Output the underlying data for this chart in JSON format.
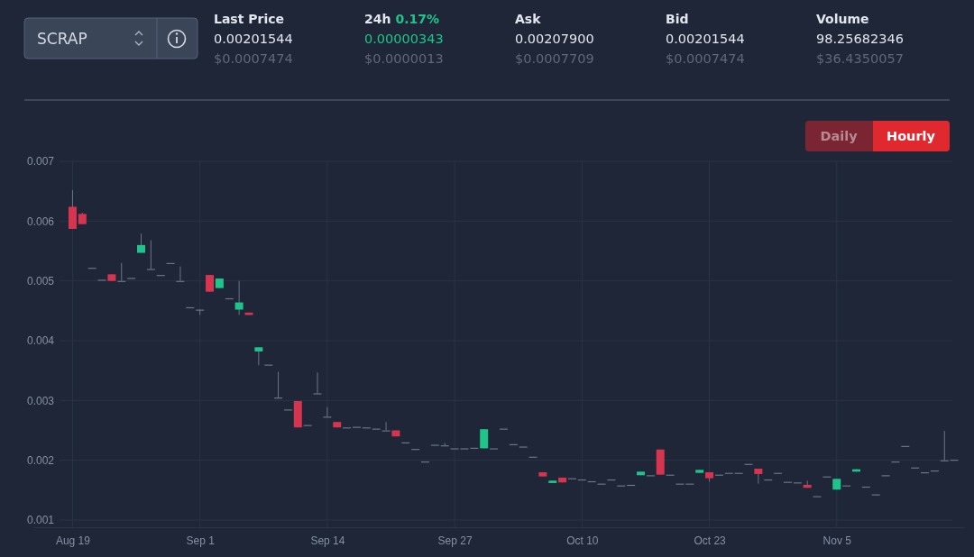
{
  "chart_data": {
    "type": "candlestick",
    "annotations": [
      "SCRAP",
      "Last Price",
      "0.00201544",
      "$0.0007474",
      "24h",
      "0.17%",
      "0.00000343",
      "$0.0000013",
      "Ask",
      "0.00207900",
      "$0.0007709",
      "Bid",
      "0.00201544",
      "$0.0007474",
      "Volume",
      "98.25682346",
      "$36.4350057",
      "Daily",
      "Hourly"
    ],
    "x": [
      "--08-19",
      "--08-20",
      "--08-21",
      "--08-22",
      "--08-23",
      "--08-24",
      "--08-25",
      "--08-26",
      "--08-27",
      "--08-28",
      "--08-29",
      "--08-30",
      "--08-31",
      "--09-01",
      "--09-02",
      "--09-03",
      "--09-04",
      "--09-05",
      "--09-06",
      "--09-07",
      "--09-08",
      "--09-09",
      "--09-10",
      "--09-11",
      "--09-12",
      "--09-13",
      "--09-14",
      "--09-15",
      "--09-16",
      "--09-17",
      "--09-18",
      "--09-19",
      "--09-20",
      "--09-21",
      "--09-22",
      "--09-23",
      "--09-24",
      "--09-25",
      "--09-26",
      "--09-27",
      "--09-28",
      "--09-29",
      "--09-30",
      "--10-01",
      "--10-02",
      "--10-03",
      "--10-04",
      "--10-05",
      "--10-06",
      "--10-07",
      "--10-08",
      "--10-09",
      "--10-10",
      "--10-11",
      "--10-12",
      "--10-13",
      "--10-14",
      "--10-15",
      "--10-16",
      "--10-17",
      "--10-18",
      "--10-19",
      "--10-20",
      "--10-21",
      "--10-22",
      "--10-23",
      "--10-24",
      "--10-25",
      "--10-26",
      "--10-27",
      "--10-28",
      "--10-29",
      "--10-30",
      "--10-31",
      "--11-01",
      "--11-02",
      "--11-03",
      "--11-04",
      "--11-05",
      "--11-06",
      "--11-07",
      "--11-08",
      "--11-09",
      "--11-10",
      "--11-11",
      "--11-12",
      "--11-13",
      "--11-14",
      "--11-15",
      "--11-16",
      "--11-17"
    ],
    "ohlc": [
      [
        0.00624,
        0.00652,
        0.00587,
        0.00587
      ],
      [
        0.00612,
        0.00614,
        0.00595,
        0.00595
      ],
      [
        0.00522,
        0.00522,
        0.00522,
        0.00522
      ],
      [
        0.00502,
        0.00502,
        0.00502,
        0.00502
      ],
      [
        0.00511,
        0.00511,
        0.005,
        0.005
      ],
      [
        0.005,
        0.0053,
        0.005,
        0.005
      ],
      [
        0.00505,
        0.00505,
        0.00505,
        0.00505
      ],
      [
        0.00547,
        0.00579,
        0.00547,
        0.0056
      ],
      [
        0.0052,
        0.00568,
        0.0052,
        0.0052
      ],
      [
        0.0051,
        0.0051,
        0.0051,
        0.0051
      ],
      [
        0.0053,
        0.0053,
        0.0053,
        0.0053
      ],
      [
        0.005,
        0.00524,
        0.005,
        0.005
      ],
      [
        0.00456,
        0.00456,
        0.00456,
        0.00456
      ],
      [
        0.00452,
        0.00452,
        0.00443,
        0.00452
      ],
      [
        0.0051,
        0.0051,
        0.00482,
        0.00482
      ],
      [
        0.00488,
        0.00504,
        0.00488,
        0.00504
      ],
      [
        0.00471,
        0.00471,
        0.00471,
        0.00471
      ],
      [
        0.00452,
        0.005,
        0.00443,
        0.00464
      ],
      [
        0.00447,
        0.00447,
        0.00443,
        0.00443
      ],
      [
        0.00382,
        0.00389,
        0.00359,
        0.00389
      ],
      [
        0.0036,
        0.0036,
        0.0036,
        0.0036
      ],
      [
        0.00305,
        0.00348,
        0.00305,
        0.00305
      ],
      [
        0.00285,
        0.00285,
        0.00285,
        0.00285
      ],
      [
        0.00299,
        0.00299,
        0.00255,
        0.00255
      ],
      [
        0.00259,
        0.00259,
        0.00259,
        0.00259
      ],
      [
        0.00312,
        0.00347,
        0.00312,
        0.00312
      ],
      [
        0.00273,
        0.00289,
        0.00273,
        0.00273
      ],
      [
        0.00264,
        0.00264,
        0.00255,
        0.00255
      ],
      [
        0.00255,
        0.00255,
        0.00255,
        0.00255
      ],
      [
        0.00256,
        0.00256,
        0.00256,
        0.00256
      ],
      [
        0.00255,
        0.00255,
        0.00255,
        0.00255
      ],
      [
        0.00253,
        0.00253,
        0.00253,
        0.00253
      ],
      [
        0.0025,
        0.00264,
        0.0025,
        0.0025
      ],
      [
        0.0025,
        0.0025,
        0.0024,
        0.0024
      ],
      [
        0.0023,
        0.0023,
        0.0023,
        0.0023
      ],
      [
        0.00219,
        0.00219,
        0.00219,
        0.00219
      ],
      [
        0.00198,
        0.00198,
        0.00198,
        0.00198
      ],
      [
        0.00226,
        0.00226,
        0.00226,
        0.00226
      ],
      [
        0.00225,
        0.00229,
        0.00225,
        0.00225
      ],
      [
        0.0022,
        0.0022,
        0.0022,
        0.0022
      ],
      [
        0.0022,
        0.0022,
        0.0022,
        0.0022
      ],
      [
        0.00221,
        0.00221,
        0.00221,
        0.00221
      ],
      [
        0.0022,
        0.00252,
        0.0022,
        0.00252
      ],
      [
        0.0022,
        0.0022,
        0.0022,
        0.0022
      ],
      [
        0.00253,
        0.00253,
        0.00253,
        0.00253
      ],
      [
        0.00227,
        0.00227,
        0.00227,
        0.00227
      ],
      [
        0.00223,
        0.00223,
        0.00223,
        0.00223
      ],
      [
        0.00206,
        0.00206,
        0.00206,
        0.00206
      ],
      [
        0.0018,
        0.0018,
        0.00173,
        0.00173
      ],
      [
        0.00162,
        0.00166,
        0.00162,
        0.00166
      ],
      [
        0.00171,
        0.00171,
        0.00163,
        0.00163
      ],
      [
        0.0017,
        0.0017,
        0.0017,
        0.0017
      ],
      [
        0.00168,
        0.00168,
        0.00168,
        0.00168
      ],
      [
        0.00165,
        0.00165,
        0.00165,
        0.00165
      ],
      [
        0.00161,
        0.00161,
        0.00161,
        0.00161
      ],
      [
        0.00168,
        0.00168,
        0.00168,
        0.00168
      ],
      [
        0.00158,
        0.00158,
        0.00158,
        0.00158
      ],
      [
        0.00159,
        0.00159,
        0.00159,
        0.00159
      ],
      [
        0.00175,
        0.00181,
        0.00175,
        0.00181
      ],
      [
        0.00175,
        0.00175,
        0.00175,
        0.00175
      ],
      [
        0.00218,
        0.00218,
        0.00176,
        0.00176
      ],
      [
        0.00176,
        0.00176,
        0.00176,
        0.00176
      ],
      [
        0.00161,
        0.00161,
        0.00161,
        0.00161
      ],
      [
        0.00161,
        0.00161,
        0.00161,
        0.00161
      ],
      [
        0.00179,
        0.00184,
        0.00179,
        0.00184
      ],
      [
        0.0018,
        0.0018,
        0.00164,
        0.0017
      ],
      [
        0.00176,
        0.00176,
        0.00176,
        0.00176
      ],
      [
        0.00179,
        0.00179,
        0.00179,
        0.00179
      ],
      [
        0.00179,
        0.00179,
        0.00179,
        0.00179
      ],
      [
        0.00194,
        0.00194,
        0.00194,
        0.00194
      ],
      [
        0.00186,
        0.00186,
        0.00161,
        0.00177
      ],
      [
        0.00168,
        0.00168,
        0.00168,
        0.00168
      ],
      [
        0.00179,
        0.00179,
        0.00179,
        0.00179
      ],
      [
        0.00164,
        0.00164,
        0.00164,
        0.00164
      ],
      [
        0.00163,
        0.00163,
        0.00163,
        0.00163
      ],
      [
        0.00159,
        0.00166,
        0.00154,
        0.00154
      ],
      [
        0.0014,
        0.0014,
        0.0014,
        0.0014
      ],
      [
        0.00173,
        0.00173,
        0.00173,
        0.00173
      ],
      [
        0.00151,
        0.00169,
        0.00151,
        0.00169
      ],
      [
        0.00158,
        0.00158,
        0.00158,
        0.00158
      ],
      [
        0.00181,
        0.00185,
        0.00181,
        0.00185
      ],
      [
        0.00156,
        0.00156,
        0.00156,
        0.00156
      ],
      [
        0.00143,
        0.00143,
        0.00143,
        0.00143
      ],
      [
        0.00175,
        0.00175,
        0.00175,
        0.00175
      ],
      [
        0.00198,
        0.00198,
        0.00198,
        0.00198
      ],
      [
        0.00224,
        0.00224,
        0.00224,
        0.00224
      ],
      [
        0.00188,
        0.00188,
        0.00188,
        0.00188
      ],
      [
        0.0018,
        0.0018,
        0.0018,
        0.0018
      ],
      [
        0.00183,
        0.00183,
        0.00183,
        0.00183
      ],
      [
        0.002,
        0.00249,
        0.002,
        0.002
      ],
      [
        0.00201,
        0.00201,
        0.00201,
        0.00201
      ]
    ],
    "colors": [
      "#d7354f",
      "#d7354f",
      "#6b7586",
      "#6b7586",
      "#d7354f",
      "#6b7586",
      "#6b7586",
      "#1fc48a",
      "#6b7586",
      "#6b7586",
      "#6b7586",
      "#6b7586",
      "#6b7586",
      "#6b7586",
      "#d7354f",
      "#1fc48a",
      "#6b7586",
      "#1fc48a",
      "#d7354f",
      "#1fc48a",
      "#6b7586",
      "#6b7586",
      "#6b7586",
      "#d7354f",
      "#6b7586",
      "#6b7586",
      "#6b7586",
      "#d7354f",
      "#6b7586",
      "#6b7586",
      "#6b7586",
      "#6b7586",
      "#6b7586",
      "#d7354f",
      "#6b7586",
      "#6b7586",
      "#6b7586",
      "#6b7586",
      "#6b7586",
      "#6b7586",
      "#6b7586",
      "#6b7586",
      "#1fc48a",
      "#6b7586",
      "#6b7586",
      "#6b7586",
      "#6b7586",
      "#6b7586",
      "#d7354f",
      "#1fc48a",
      "#d7354f",
      "#6b7586",
      "#6b7586",
      "#6b7586",
      "#6b7586",
      "#6b7586",
      "#6b7586",
      "#6b7586",
      "#1fc48a",
      "#6b7586",
      "#d7354f",
      "#6b7586",
      "#6b7586",
      "#6b7586",
      "#1fc48a",
      "#d7354f",
      "#6b7586",
      "#6b7586",
      "#6b7586",
      "#6b7586",
      "#d7354f",
      "#6b7586",
      "#6b7586",
      "#6b7586",
      "#6b7586",
      "#d7354f",
      "#6b7586",
      "#6b7586",
      "#1fc48a",
      "#6b7586",
      "#1fc48a",
      "#6b7586",
      "#6b7586",
      "#6b7586",
      "#6b7586",
      "#6b7586",
      "#6b7586",
      "#6b7586",
      "#6b7586",
      "#6b7586",
      "#6b7586"
    ],
    "xlim": [
      "--08-15",
      "--11-18"
    ],
    "xticks": [
      {
        "value": "--08-19",
        "label": "Aug 19"
      },
      {
        "value": "--09-01",
        "label": "Sep 1"
      },
      {
        "value": "--09-14",
        "label": "Sep 14"
      },
      {
        "value": "--09-27",
        "label": "Sep 27"
      },
      {
        "value": "--10-10",
        "label": "Oct 10"
      },
      {
        "value": "--10-23",
        "label": "Oct 23"
      },
      {
        "value": "--11-05",
        "label": "Nov 5"
      }
    ],
    "ylim": [
      0.00088,
      0.007
    ],
    "yticks": [
      0.001,
      0.002,
      0.003,
      0.004,
      0.005,
      0.006,
      0.007
    ],
    "grid": true
  }
}
